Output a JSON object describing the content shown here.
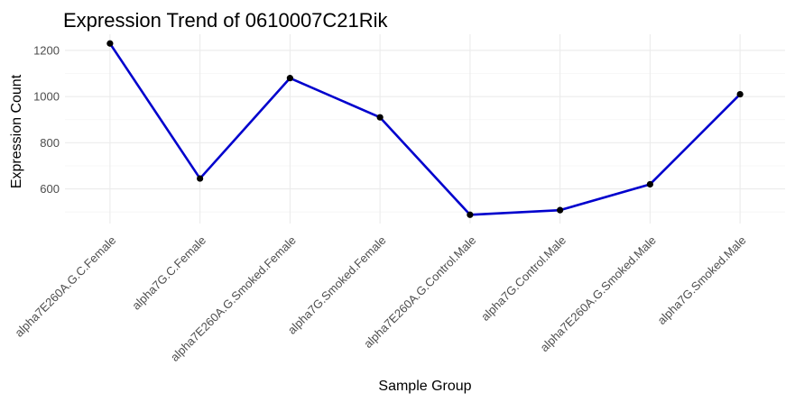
{
  "chart_data": {
    "type": "line",
    "title": "Expression Trend of 0610007C21Rik",
    "xlabel": "Sample Group",
    "ylabel": "Expression Count",
    "categories": [
      "alpha7E260A.G.C.Female",
      "alpha7G.C.Female",
      "alpha7E260A.G.Smoked.Female",
      "alpha7G.Smoked.Female",
      "alpha7E260A.G.Control.Male",
      "alpha7G.Control.Male",
      "alpha7E260A.G.Smoked.Male",
      "alpha7G.Smoked.Male"
    ],
    "series": [
      {
        "values": [
          1230,
          645,
          1080,
          910,
          488,
          508,
          620,
          1010
        ]
      }
    ],
    "ylim": [
      450,
      1270
    ],
    "yticks": [
      600,
      800,
      1000,
      1200
    ],
    "grid": true,
    "legend": "none",
    "line_color": "#0000CD",
    "point_color": "#000000"
  }
}
